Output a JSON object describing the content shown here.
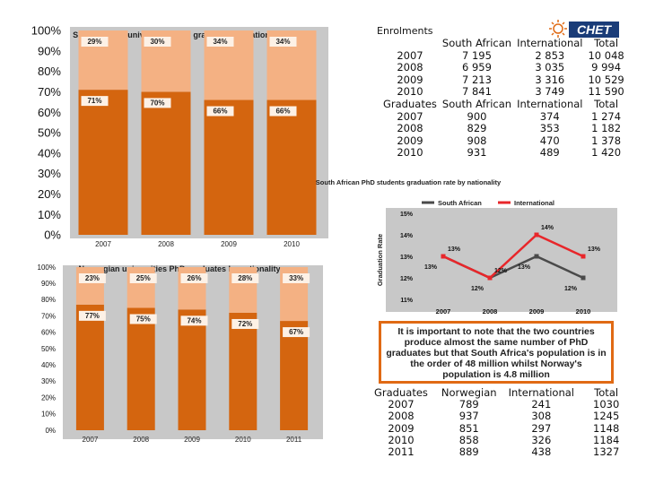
{
  "chart_data": [
    {
      "type": "stacked-bar",
      "title": "South African universities PhD graduates by nationality",
      "categories": [
        "2007",
        "2008",
        "2009",
        "2010"
      ],
      "ylim": [
        0,
        100
      ],
      "ytick_labels": [
        "0%",
        "10%",
        "20%",
        "30%",
        "40%",
        "50%",
        "60%",
        "70%",
        "80%",
        "90%",
        "100%"
      ],
      "series": [
        {
          "name": "South African",
          "values": [
            71,
            70,
            66,
            66
          ],
          "labels": [
            "71%",
            "70%",
            "66%",
            "66%"
          ],
          "color": "#d4650f"
        },
        {
          "name": "International",
          "values": [
            29,
            30,
            34,
            34
          ],
          "labels": [
            "29%",
            "30%",
            "34%",
            "34%"
          ],
          "color": "#f4b183"
        }
      ]
    },
    {
      "type": "stacked-bar",
      "title": "Norwegian universities PhD graduates by nationality",
      "categories": [
        "2007",
        "2008",
        "2009",
        "2010",
        "2011"
      ],
      "ylim": [
        0,
        100
      ],
      "ytick_labels": [
        "0%",
        "10%",
        "20%",
        "30%",
        "40%",
        "50%",
        "60%",
        "70%",
        "80%",
        "90%",
        "100%"
      ],
      "series": [
        {
          "name": "Norwegian",
          "values": [
            77,
            75,
            74,
            72,
            67
          ],
          "labels": [
            "77%",
            "75%",
            "74%",
            "72%",
            "67%"
          ],
          "color": "#d4650f"
        },
        {
          "name": "International",
          "values": [
            23,
            25,
            26,
            28,
            33
          ],
          "labels": [
            "23%",
            "25%",
            "26%",
            "28%",
            "33%"
          ],
          "color": "#f4b183"
        }
      ]
    },
    {
      "type": "line",
      "title": "South African PhD students graduation rate by nationality",
      "ylabel": "Graduation Rate",
      "x": [
        "2007",
        "2008",
        "2009",
        "2010"
      ],
      "ylim": [
        11,
        15
      ],
      "ytick_labels": [
        "11%",
        "12%",
        "13%",
        "14%",
        "15%"
      ],
      "series": [
        {
          "name": "South African",
          "values": [
            13,
            12,
            13,
            12
          ],
          "labels": [
            "13%",
            "12%",
            "13%",
            "12%"
          ],
          "color": "#4a4a4a"
        },
        {
          "name": "International",
          "values": [
            13,
            12,
            14,
            13
          ],
          "labels": [
            "13%",
            "12%",
            "14%",
            "13%"
          ],
          "color": "#e8262a"
        }
      ]
    }
  ],
  "enrolments": {
    "label": "Enrolments",
    "headers": [
      "",
      "South African",
      "International",
      "Total"
    ],
    "rows": [
      [
        "2007",
        "7 195",
        "2 853",
        "10 048"
      ],
      [
        "2008",
        "6 959",
        "3 035",
        "9 994"
      ],
      [
        "2009",
        "7 213",
        "3 316",
        "10 529"
      ],
      [
        "2010",
        "7 841",
        "3 749",
        "11 590"
      ]
    ]
  },
  "graduates_sa": {
    "headers": [
      "Graduates",
      "South African",
      "International",
      "Total"
    ],
    "rows": [
      [
        "2007",
        "900",
        "374",
        "1 274"
      ],
      [
        "2008",
        "829",
        "353",
        "1 182"
      ],
      [
        "2009",
        "908",
        "470",
        "1 378"
      ],
      [
        "2010",
        "931",
        "489",
        "1 420"
      ]
    ]
  },
  "graduates_no": {
    "headers": [
      "Graduates",
      "Norwegian",
      "International",
      "Total"
    ],
    "rows": [
      [
        "2007",
        "789",
        "241",
        "1030"
      ],
      [
        "2008",
        "937",
        "308",
        "1245"
      ],
      [
        "2009",
        "851",
        "297",
        "1148"
      ],
      [
        "2010",
        "858",
        "326",
        "1184"
      ],
      [
        "2011",
        "889",
        "438",
        "1327"
      ]
    ]
  },
  "note": {
    "text": "It is important to note that the two countries produce almost the same number of PhD graduates but that South Africa's population is in the order of 48 million whilst Norway's population is 4.8 million"
  },
  "logo": {
    "text": "CHET"
  },
  "colors": {
    "dark_orange": "#d4650f",
    "light_orange": "#f4b183",
    "panel": "#c8c8c8",
    "accent": "#e06a14",
    "red": "#e8262a"
  }
}
